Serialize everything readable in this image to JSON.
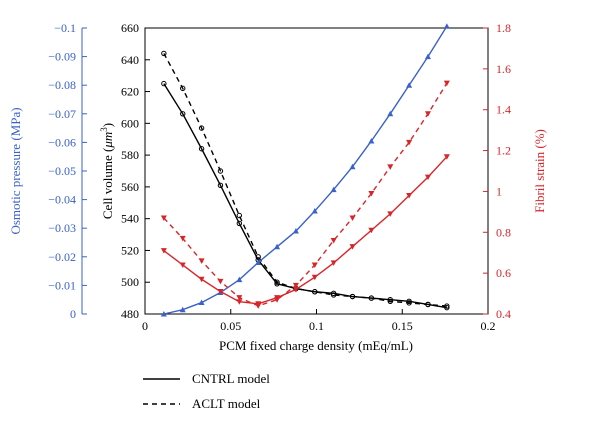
{
  "chart_data": {
    "type": "line",
    "x_axis": {
      "label": "PCM fixed charge density (mEq/mL)",
      "lim": [
        0,
        0.2
      ],
      "ticks": [
        0,
        0.05,
        0.1,
        0.15,
        0.2
      ],
      "tick_labels": [
        "0",
        "0.05",
        "0.1",
        "0.15",
        "0.2"
      ]
    },
    "y_axes": {
      "cell_volume": {
        "label_prefix": "Cell volume (",
        "label_unit_base": "μm",
        "label_unit_exp": "3",
        "label_suffix": ")",
        "lim": [
          480,
          660
        ],
        "ticks": [
          480,
          500,
          520,
          540,
          560,
          580,
          600,
          620,
          640,
          660
        ],
        "tick_labels": [
          "480",
          "500",
          "520",
          "540",
          "560",
          "580",
          "600",
          "620",
          "640",
          "660"
        ],
        "color": "#000000"
      },
      "osmotic_pressure": {
        "label": "Osmotic pressure (MPa)",
        "lim": [
          0,
          -0.1
        ],
        "ticks": [
          0,
          -0.01,
          -0.02,
          -0.03,
          -0.04,
          -0.05,
          -0.06,
          -0.07,
          -0.08,
          -0.09,
          -0.1
        ],
        "tick_labels": [
          "0",
          "−0.01",
          "−0.02",
          "−0.03",
          "−0.04",
          "−0.05",
          "−0.06",
          "−0.07",
          "−0.08",
          "−0.09",
          "−0.1"
        ],
        "color": "#3a62c8"
      },
      "fibril_strain": {
        "label": "Fibril strain (%)",
        "lim": [
          0.4,
          1.8
        ],
        "ticks": [
          0.4,
          0.6,
          0.8,
          1,
          1.2,
          1.4,
          1.6,
          1.8
        ],
        "tick_labels": [
          "0.4",
          "0.6",
          "0.8",
          "1",
          "1.2",
          "1.4",
          "1.6",
          "1.8"
        ],
        "color": "#d6262a"
      }
    },
    "x": [
      0.011,
      0.022,
      0.033,
      0.044,
      0.055,
      0.066,
      0.077,
      0.088,
      0.099,
      0.11,
      0.121,
      0.132,
      0.143,
      0.154,
      0.165,
      0.176
    ],
    "series": [
      {
        "axis": "cell_volume",
        "color": "#000000",
        "dash": false,
        "marker": "circle",
        "values": [
          625,
          606,
          584,
          561,
          537,
          514,
          499,
          496,
          494,
          493,
          491,
          490,
          489,
          488,
          486,
          484
        ]
      },
      {
        "axis": "cell_volume",
        "color": "#000000",
        "dash": true,
        "marker": "circle",
        "values": [
          644,
          622,
          597,
          570,
          542,
          516,
          500,
          496,
          494,
          492,
          491,
          490,
          488,
          487,
          486,
          485
        ]
      },
      {
        "axis": "osmotic_pressure",
        "color": "#3a62c8",
        "dash": false,
        "marker": "triangle-up",
        "values": [
          0,
          -0.0015,
          -0.004,
          -0.0075,
          -0.012,
          -0.018,
          -0.0235,
          -0.029,
          -0.036,
          -0.0435,
          -0.0515,
          -0.0605,
          -0.07,
          -0.08,
          -0.09,
          -0.1006
        ]
      },
      {
        "axis": "fibril_strain",
        "color": "#d6262a",
        "dash": false,
        "marker": "triangle-down",
        "values": [
          0.71,
          0.64,
          0.57,
          0.51,
          0.46,
          0.45,
          0.48,
          0.52,
          0.58,
          0.65,
          0.73,
          0.81,
          0.89,
          0.98,
          1.07,
          1.17
        ]
      },
      {
        "axis": "fibril_strain",
        "color": "#d6262a",
        "dash": true,
        "marker": "triangle-down",
        "values": [
          0.87,
          0.77,
          0.66,
          0.56,
          0.48,
          0.44,
          0.47,
          0.54,
          0.64,
          0.76,
          0.87,
          0.99,
          1.12,
          1.24,
          1.38,
          1.53
        ]
      }
    ],
    "legend": [
      {
        "label": "CNTRL model",
        "dash": false
      },
      {
        "label": "ACLT model",
        "dash": true
      }
    ]
  }
}
